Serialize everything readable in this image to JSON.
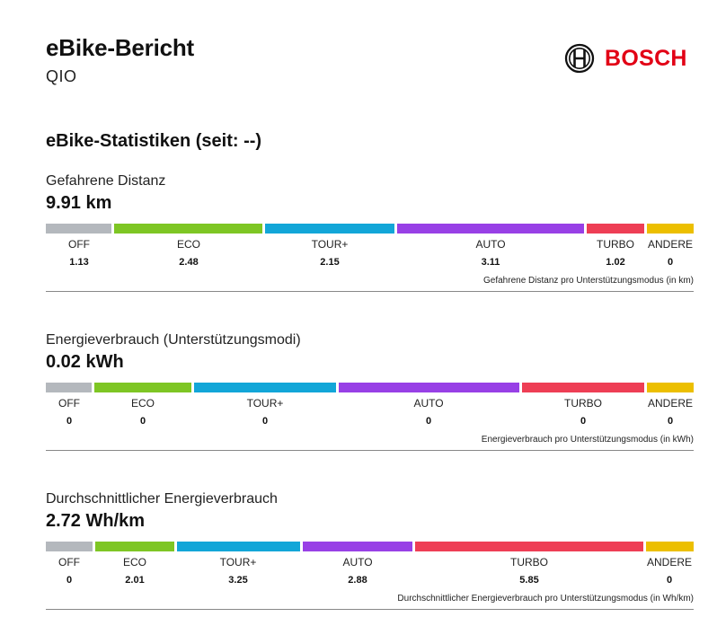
{
  "header": {
    "title": "eBike-Bericht",
    "subtitle": "QIO",
    "logo_text": "BOSCH",
    "logo_color": "#e20015"
  },
  "section_title": "eBike-Statistiken (seit: --)",
  "mode_colors": {
    "OFF": "#b4b8bd",
    "ECO": "#7ec624",
    "TOUR+": "#12a6d8",
    "AUTO": "#9840e6",
    "TURBO": "#ee3e55",
    "ANDERE": "#ecbf00"
  },
  "stats": [
    {
      "label": "Gefahrene Distanz",
      "value": "9.91 km",
      "caption": "Gefahrene Distanz pro Unterstützungsmodus (in km)",
      "modes": [
        {
          "name": "OFF",
          "value": "1.13"
        },
        {
          "name": "ECO",
          "value": "2.48"
        },
        {
          "name": "TOUR+",
          "value": "2.15"
        },
        {
          "name": "AUTO",
          "value": "3.11"
        },
        {
          "name": "TURBO",
          "value": "1.02"
        },
        {
          "name": "ANDERE",
          "value": "0"
        }
      ]
    },
    {
      "label": "Energieverbrauch (Unterstützungsmodi)",
      "value": "0.02 kWh",
      "caption": "Energieverbrauch pro Unterstützungsmodus (in kWh)",
      "modes": [
        {
          "name": "OFF",
          "value": "0"
        },
        {
          "name": "ECO",
          "value": "0"
        },
        {
          "name": "TOUR+",
          "value": "0"
        },
        {
          "name": "AUTO",
          "value": "0"
        },
        {
          "name": "TURBO",
          "value": "0"
        },
        {
          "name": "ANDERE",
          "value": "0"
        }
      ]
    },
    {
      "label": "Durchschnittlicher Energieverbrauch",
      "value": "2.72 Wh/km",
      "caption": "Durchschnittlicher Energieverbrauch pro Unterstützungsmodus (in Wh/km)",
      "modes": [
        {
          "name": "OFF",
          "value": "0"
        },
        {
          "name": "ECO",
          "value": "2.01"
        },
        {
          "name": "TOUR+",
          "value": "3.25"
        },
        {
          "name": "AUTO",
          "value": "2.88"
        },
        {
          "name": "TURBO",
          "value": "5.85"
        },
        {
          "name": "ANDERE",
          "value": "0"
        }
      ]
    }
  ]
}
